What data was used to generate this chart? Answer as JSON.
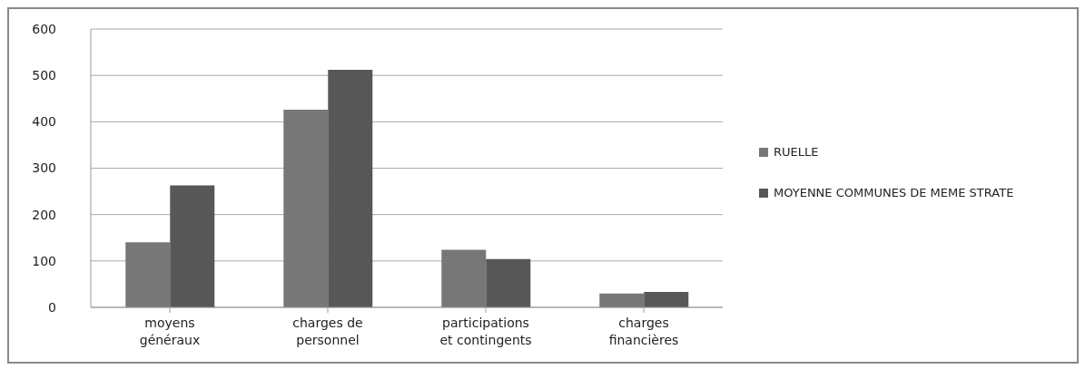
{
  "chart_data": {
    "type": "bar",
    "categories": [
      "moyens généraux",
      "charges de personnel",
      "participations et contingents",
      "charges financières"
    ],
    "series": [
      {
        "name": "RUELLE",
        "color": "#777777",
        "values": [
          140,
          426,
          124,
          30
        ]
      },
      {
        "name": "MOYENNE COMMUNES DE MEME STRATE",
        "color": "#575757",
        "values": [
          263,
          512,
          104,
          33
        ]
      }
    ],
    "ylim": [
      0,
      600
    ],
    "yticks": [
      0,
      100,
      200,
      300,
      400,
      500,
      600
    ],
    "grid": "y",
    "legend": "right"
  }
}
